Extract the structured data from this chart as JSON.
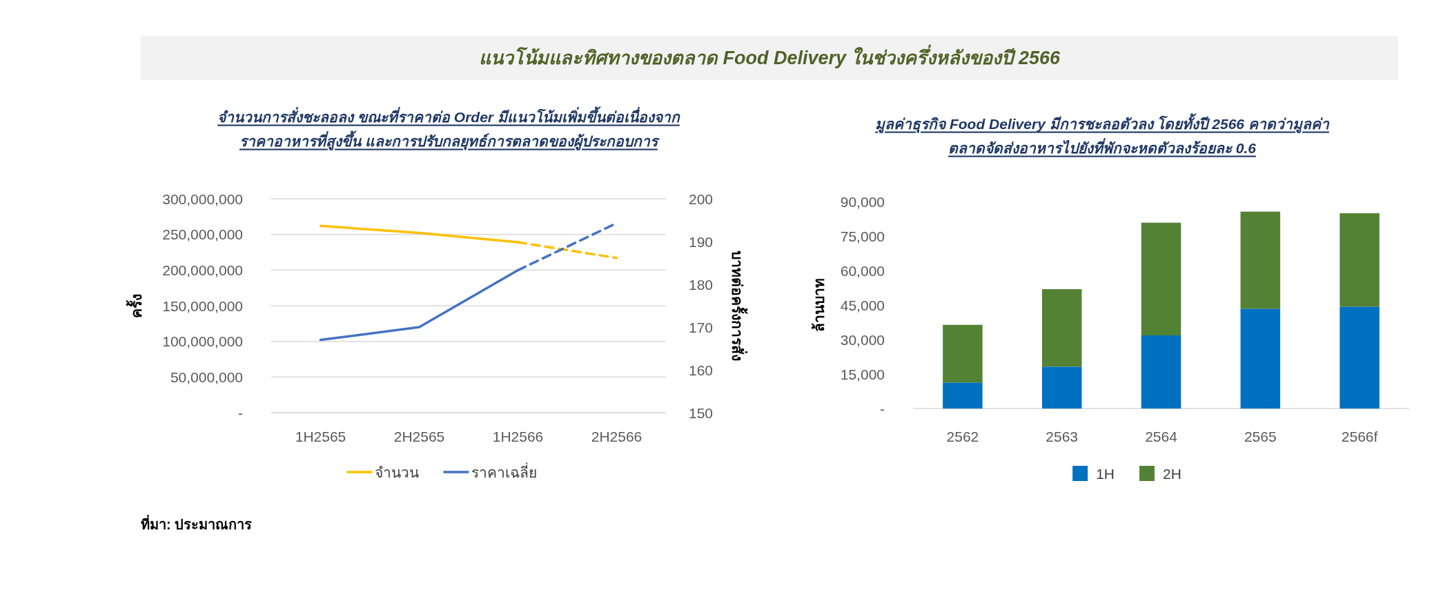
{
  "chart_data": [
    {
      "type": "other",
      "title": "แนวโน้มและทิศทางของตลาด Food Delivery ในช่วงครึ่งหลังของปี 2566",
      "annotations": [
        "ที่มา: ประมาณการ"
      ]
    },
    {
      "type": "line",
      "title": "จำนวนการสั่งชะลอลง ขณะที่ราคาต่อ Order มีแนวโน้มเพิ่มขึ้นต่อเนื่องจาก\nราคาอาหารที่สูงขึ้น และการปรับกลยุทธ์การตลาดของผู้ประกอบการ",
      "ylabel": "ครั้ง",
      "y2label": "บาทต่อครั้งการสั่ง",
      "categories": [
        "1H2565",
        "2H2565",
        "1H2566",
        "2H2566"
      ],
      "series": [
        {
          "name": "จำนวน",
          "color": "#ffc000",
          "values": [
            262000000,
            252000000,
            239000000,
            null
          ]
        },
        {
          "color": "#ffc000",
          "values": [
            null,
            null,
            239000000,
            217000000
          ],
          "line_style": "dashed"
        },
        {
          "name": "ราคาเฉลี่ย",
          "color": "#4472c4",
          "axis": "y2",
          "values": [
            167,
            170,
            183.3,
            null
          ]
        },
        {
          "color": "#4472c4",
          "axis": "y2",
          "values": [
            null,
            null,
            183.3,
            194.3
          ],
          "line_style": "dashed"
        }
      ],
      "ylim": [
        0,
        300000000
      ],
      "yticks": [
        {
          "value": 0,
          "label": "-"
        },
        {
          "value": 50000000,
          "label": "50,000,000"
        },
        {
          "value": 100000000,
          "label": "100,000,000"
        },
        {
          "value": 150000000,
          "label": "150,000,000"
        },
        {
          "value": 200000000,
          "label": "200,000,000"
        },
        {
          "value": 250000000,
          "label": "250,000,000"
        },
        {
          "value": 300000000,
          "label": "300,000,000"
        }
      ],
      "y2lim": [
        150,
        200
      ],
      "y2ticks": [
        150,
        160,
        170,
        180,
        190,
        200
      ],
      "grid": "y",
      "legend": "bottom"
    },
    {
      "type": "bar",
      "stacked": true,
      "title": "มูลค่าธุรกิจ Food Delivery มีการชะลอตัวลง โดยทั้งปี 2566 คาดว่ามูลค่า\nตลาดจัดส่งอาหารไปยังที่พักจะหดตัวลงร้อยละ 0.6",
      "ylabel": "ล้านบาท",
      "categories": [
        "2562",
        "2563",
        "2564",
        "2565",
        "2566f"
      ],
      "series": [
        {
          "name": "1H",
          "color": "#0070c0",
          "values": [
            11300,
            18200,
            31800,
            43400,
            44300
          ]
        },
        {
          "name": "2H",
          "color": "#548235",
          "values": [
            25100,
            33700,
            49000,
            42200,
            40600
          ]
        }
      ],
      "ylim": [
        0,
        90000
      ],
      "yticks": [
        {
          "value": 0,
          "label": "-"
        },
        {
          "value": 15000,
          "label": "15,000"
        },
        {
          "value": 30000,
          "label": "30,000"
        },
        {
          "value": 45000,
          "label": "45,000"
        },
        {
          "value": 60000,
          "label": "60,000"
        },
        {
          "value": 75000,
          "label": "75,000"
        },
        {
          "value": 90000,
          "label": "90,000"
        }
      ],
      "legend": "bottom"
    }
  ]
}
